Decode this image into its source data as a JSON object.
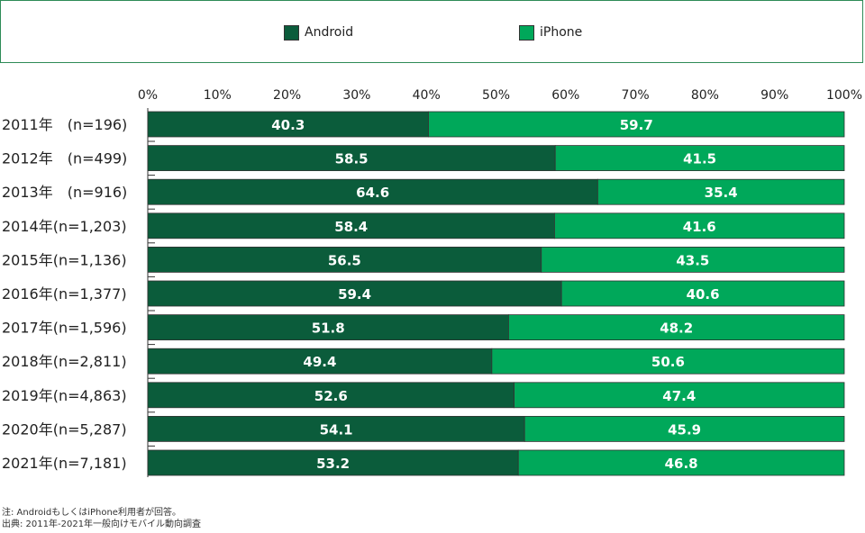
{
  "legend": {
    "android_label": "Android",
    "iphone_label": "iPhone"
  },
  "colors": {
    "android": "#0b5c3b",
    "iphone": "#00a85a",
    "frame": "#2e8b57"
  },
  "chart_data": {
    "type": "bar",
    "orientation": "horizontal",
    "stacked": true,
    "percent_stacked": true,
    "categories": [
      "2011年　(n=196)",
      "2012年　(n=499)",
      "2013年　(n=916)",
      "2014年(n=1,203)",
      "2015年(n=1,136)",
      "2016年(n=1,377)",
      "2017年(n=1,596)",
      "2018年(n=2,811)",
      "2019年(n=4,863)",
      "2020年(n=5,287)",
      "2021年(n=7,181)"
    ],
    "series": [
      {
        "name": "Android",
        "values": [
          40.3,
          58.5,
          64.6,
          58.4,
          56.5,
          59.4,
          51.8,
          49.4,
          52.6,
          54.1,
          53.2
        ]
      },
      {
        "name": "iPhone",
        "values": [
          59.7,
          41.5,
          35.4,
          41.6,
          43.5,
          40.6,
          48.2,
          50.6,
          47.4,
          45.9,
          46.8
        ]
      }
    ],
    "data_labels": {
      "Android": [
        "40.3",
        "58.5",
        "64.6",
        "58.4",
        "56.5",
        "59.4",
        "51.8",
        "49.4",
        "52.6",
        "54.1",
        "53.2"
      ],
      "iPhone": [
        "59.7",
        "41.5",
        "35.4",
        "41.6",
        "43.5",
        "40.6",
        "48.2",
        "50.6",
        "47.4",
        "45.9",
        "46.8"
      ]
    },
    "x_ticks": [
      "0%",
      "10%",
      "20%",
      "30%",
      "40%",
      "50%",
      "60%",
      "70%",
      "80%",
      "90%",
      "100%"
    ],
    "xlim": [
      0,
      100
    ],
    "legend_position": "top",
    "grid": false
  },
  "notes": {
    "note": "注: AndroidもしくはiPhone利用者が回答。",
    "source": "出典: 2011年-2021年一般向けモバイル動向調査"
  }
}
